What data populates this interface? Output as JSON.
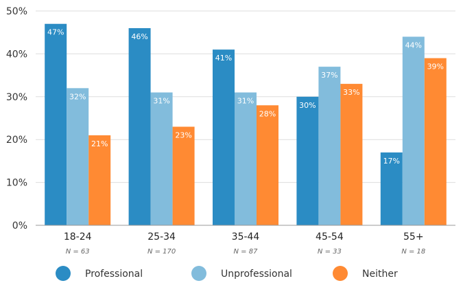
{
  "chart_data": {
    "type": "bar",
    "title": "",
    "xlabel": "",
    "ylabel": "",
    "ylim": [
      0,
      50
    ],
    "ytick_step": 10,
    "ytick_labels": [
      "0%",
      "10%",
      "20%",
      "30%",
      "40%",
      "50%"
    ],
    "grid": true,
    "legend_position": "bottom",
    "categories": [
      "18-24",
      "25-34",
      "35-44",
      "45-54",
      "55+"
    ],
    "sample_sizes": [
      "N = 63",
      "N = 170",
      "N = 87",
      "N = 33",
      "N = 18"
    ],
    "series": [
      {
        "name": "Professional",
        "color": "#2b8cc4",
        "values": [
          47,
          46,
          41,
          30,
          17
        ],
        "labels": [
          "47%",
          "46%",
          "41%",
          "30%",
          "17%"
        ]
      },
      {
        "name": "Unprofessional",
        "color": "#82bcdc",
        "values": [
          32,
          31,
          31,
          37,
          44
        ],
        "labels": [
          "32%",
          "31%",
          "31%",
          "37%",
          "44%"
        ]
      },
      {
        "name": "Neither",
        "color": "#ff8a33",
        "values": [
          21,
          23,
          28,
          33,
          39
        ],
        "labels": [
          "21%",
          "23%",
          "28%",
          "33%",
          "39%"
        ]
      }
    ]
  }
}
